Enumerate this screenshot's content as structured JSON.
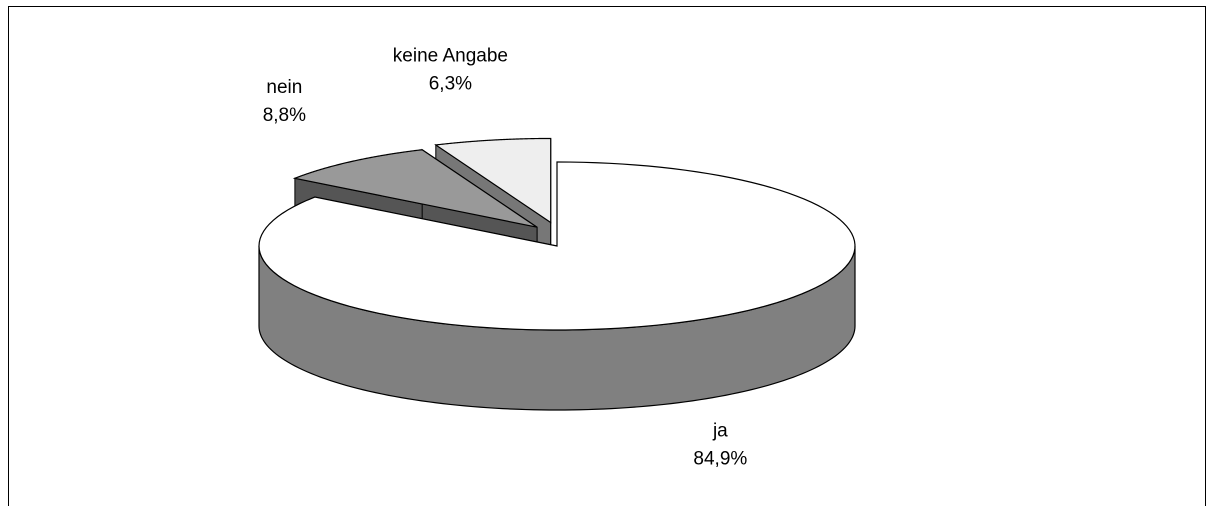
{
  "chart_data": {
    "type": "pie",
    "categories": [
      "ja",
      "nein",
      "keine Angabe"
    ],
    "values": [
      84.9,
      8.8,
      6.3
    ],
    "value_labels": [
      "84,9%",
      "8,8%",
      "6,3%"
    ],
    "colors": [
      "#ffffff",
      "#999999",
      "#eeeeee"
    ],
    "side_colors": [
      "#808080",
      "#555555",
      "#777777"
    ]
  }
}
